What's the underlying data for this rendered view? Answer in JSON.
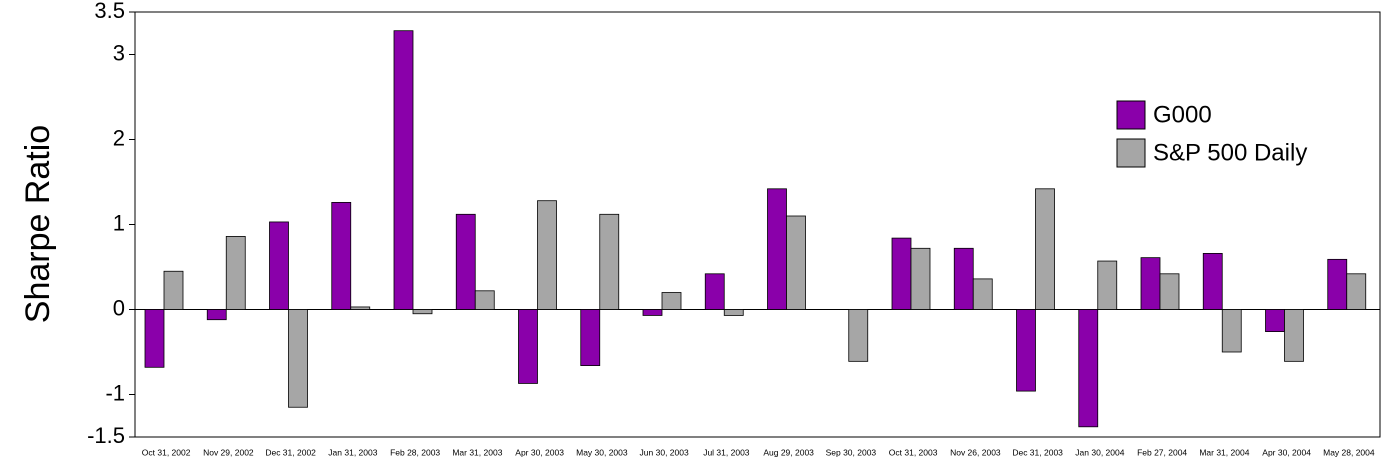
{
  "chart_data": {
    "type": "bar",
    "y_label": "Sharpe Ratio",
    "categories": [
      "Oct 31, 2002",
      "Nov 29, 2002",
      "Dec 31, 2002",
      "Jan 31, 2003",
      "Feb 28, 2003",
      "Mar 31, 2003",
      "Apr 30, 2003",
      "May 30, 2003",
      "Jun 30, 2003",
      "Jul 31, 2003",
      "Aug 29, 2003",
      "Sep 30, 2003",
      "Oct 31, 2003",
      "Nov 26, 2003",
      "Dec 31, 2003",
      "Jan 30, 2004",
      "Feb 27, 2004",
      "Mar 31, 2004",
      "Apr 30, 2004",
      "May 28, 2004"
    ],
    "series": [
      {
        "name": "G000",
        "color": "#8a00aa",
        "values": [
          -0.68,
          -0.12,
          1.03,
          1.26,
          3.28,
          1.12,
          -0.87,
          -0.66,
          -0.07,
          0.42,
          1.42,
          0,
          0.84,
          0.72,
          -0.96,
          -1.38,
          0.61,
          0.66,
          -0.26,
          0.59
        ]
      },
      {
        "name": "S&P 500 Daily",
        "color": "#a6a6a6",
        "values": [
          0.45,
          0.86,
          -1.15,
          0.03,
          -0.05,
          0.22,
          1.28,
          1.12,
          0.2,
          -0.07,
          1.1,
          -0.61,
          0.72,
          0.36,
          1.42,
          0.57,
          0.42,
          -0.5,
          -0.61,
          0.42
        ]
      }
    ],
    "ylim": [
      -1.5,
      3.5
    ],
    "yticks": [
      -1.5,
      -1,
      0,
      1,
      2,
      3,
      3.5
    ],
    "grid": false
  }
}
